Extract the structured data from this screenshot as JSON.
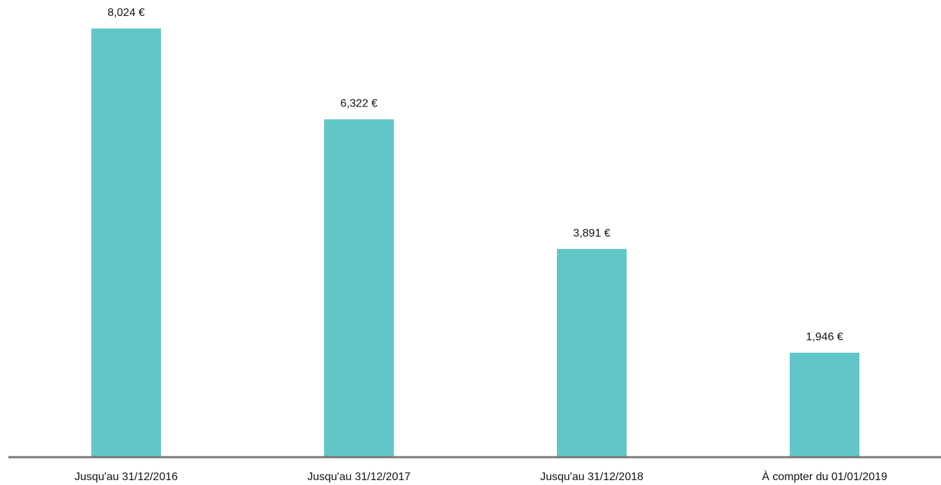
{
  "chart_data": {
    "type": "bar",
    "categories": [
      "Jusqu'au 31/12/2016",
      "Jusqu'au 31/12/2017",
      "Jusqu'au 31/12/2018",
      "À compter du 01/01/2019"
    ],
    "values": [
      8024,
      6322,
      3891,
      1946
    ],
    "value_labels": [
      "8,024 €",
      "6,322 €",
      "3,891 €",
      "1,946 €"
    ],
    "color": "#61c6c7"
  }
}
